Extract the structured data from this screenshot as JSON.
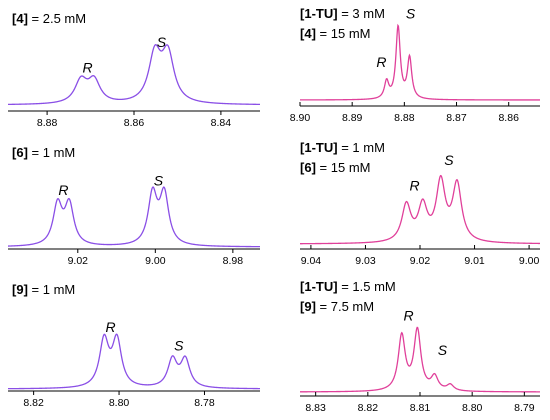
{
  "colors": {
    "violet": "#8a4fe6",
    "pink": "#e0409a",
    "axis": "#000000"
  },
  "chart_data": [
    {
      "type": "line",
      "panel": "4",
      "color": "#8a4fe6",
      "conditions": [
        {
          "species": "4",
          "value": "2.5 mM"
        }
      ],
      "xlim": [
        8.889,
        8.831
      ],
      "ticks": [
        8.88,
        8.86,
        8.84
      ],
      "tick_labels": [
        "8.88",
        "8.86",
        "8.84"
      ],
      "peaks": [
        {
          "x": 8.8722,
          "h": 0.33,
          "w": 0.0017
        },
        {
          "x": 8.8692,
          "h": 0.33,
          "w": 0.0017
        },
        {
          "x": 8.8552,
          "h": 0.7,
          "w": 0.0017
        },
        {
          "x": 8.8522,
          "h": 0.7,
          "w": 0.0017
        }
      ],
      "labels": [
        {
          "text": "R",
          "x": 8.8707,
          "h": 0.48
        },
        {
          "text": "S",
          "x": 8.8537,
          "h": 0.85
        }
      ]
    },
    {
      "type": "line",
      "panel": "6",
      "color": "#8a4fe6",
      "conditions": [
        {
          "species": "6",
          "value": "1 mM"
        }
      ],
      "xlim": [
        9.038,
        8.973
      ],
      "ticks": [
        9.02,
        9.0,
        8.98
      ],
      "tick_labels": [
        "9.02",
        "9.00",
        "8.98"
      ],
      "peaks": [
        {
          "x": 9.0252,
          "h": 0.58,
          "w": 0.0014
        },
        {
          "x": 9.0222,
          "h": 0.58,
          "w": 0.0014
        },
        {
          "x": 9.0007,
          "h": 0.72,
          "w": 0.0014
        },
        {
          "x": 8.9977,
          "h": 0.72,
          "w": 0.0014
        }
      ],
      "labels": [
        {
          "text": "R",
          "x": 9.0237,
          "h": 0.74
        },
        {
          "text": "S",
          "x": 8.9992,
          "h": 0.88
        }
      ]
    },
    {
      "type": "line",
      "panel": "9",
      "color": "#8a4fe6",
      "conditions": [
        {
          "species": "9",
          "value": "1 mM"
        }
      ],
      "xlim": [
        8.826,
        8.767
      ],
      "ticks": [
        8.82,
        8.8,
        8.78
      ],
      "tick_labels": [
        "8.82",
        "8.80",
        "8.78"
      ],
      "peaks": [
        {
          "x": 8.8035,
          "h": 0.72,
          "w": 0.0013
        },
        {
          "x": 8.8005,
          "h": 0.72,
          "w": 0.0013
        },
        {
          "x": 8.7875,
          "h": 0.43,
          "w": 0.0013
        },
        {
          "x": 8.7845,
          "h": 0.43,
          "w": 0.0013
        }
      ],
      "labels": [
        {
          "text": "R",
          "x": 8.802,
          "h": 0.88
        },
        {
          "text": "S",
          "x": 8.786,
          "h": 0.59
        }
      ]
    },
    {
      "type": "line",
      "panel": "1-TU + 4",
      "color": "#e0409a",
      "conditions": [
        {
          "species": "1-TU",
          "value": "3 mM"
        },
        {
          "species": "4",
          "value": "15 mM"
        }
      ],
      "xlim": [
        8.9,
        8.854
      ],
      "ticks": [
        8.9,
        8.89,
        8.88,
        8.87,
        8.86
      ],
      "tick_labels": [
        "8.90",
        "8.89",
        "8.88",
        "8.87",
        "8.86"
      ],
      "peaks": [
        {
          "x": 8.8834,
          "h": 0.24,
          "w": 0.0005
        },
        {
          "x": 8.8812,
          "h": 1.0,
          "w": 0.0005
        },
        {
          "x": 8.879,
          "h": 0.57,
          "w": 0.0005
        }
      ],
      "labels": [
        {
          "text": "R",
          "x": 8.8844,
          "h": 0.46
        },
        {
          "text": "S",
          "x": 8.8788,
          "h": 1.13
        }
      ]
    },
    {
      "type": "line",
      "panel": "1-TU + 6",
      "color": "#e0409a",
      "conditions": [
        {
          "species": "1-TU",
          "value": "1 mM"
        },
        {
          "species": "6",
          "value": "15 mM"
        }
      ],
      "xlim": [
        9.042,
        8.998
      ],
      "ticks": [
        9.04,
        9.03,
        9.02,
        9.01,
        9.0
      ],
      "tick_labels": [
        "9.04",
        "9.03",
        "9.02",
        "9.01",
        "9.00"
      ],
      "peaks": [
        {
          "x": 9.0225,
          "h": 0.4,
          "w": 0.001
        },
        {
          "x": 9.0195,
          "h": 0.38,
          "w": 0.001
        },
        {
          "x": 9.0162,
          "h": 0.64,
          "w": 0.001
        },
        {
          "x": 9.0132,
          "h": 0.62,
          "w": 0.001
        }
      ],
      "labels": [
        {
          "text": "R",
          "x": 9.021,
          "h": 0.58
        },
        {
          "text": "S",
          "x": 9.0147,
          "h": 0.86
        }
      ]
    },
    {
      "type": "line",
      "panel": "1-TU + 9",
      "color": "#e0409a",
      "conditions": [
        {
          "species": "1-TU",
          "value": "1.5 mM"
        },
        {
          "species": "9",
          "value": "7.5 mM"
        }
      ],
      "xlim": [
        8.833,
        8.787
      ],
      "ticks": [
        8.83,
        8.82,
        8.81,
        8.8,
        8.79
      ],
      "tick_labels": [
        "8.83",
        "8.82",
        "8.81",
        "8.80",
        "8.79"
      ],
      "peaks": [
        {
          "x": 8.8135,
          "h": 0.64,
          "w": 0.0008
        },
        {
          "x": 8.8105,
          "h": 0.7,
          "w": 0.0008
        },
        {
          "x": 8.8072,
          "h": 0.16,
          "w": 0.0008
        },
        {
          "x": 8.8042,
          "h": 0.07,
          "w": 0.0008
        }
      ],
      "labels": [
        {
          "text": "R",
          "x": 8.8122,
          "h": 0.83
        },
        {
          "text": "S",
          "x": 8.8057,
          "h": 0.43
        }
      ]
    }
  ]
}
